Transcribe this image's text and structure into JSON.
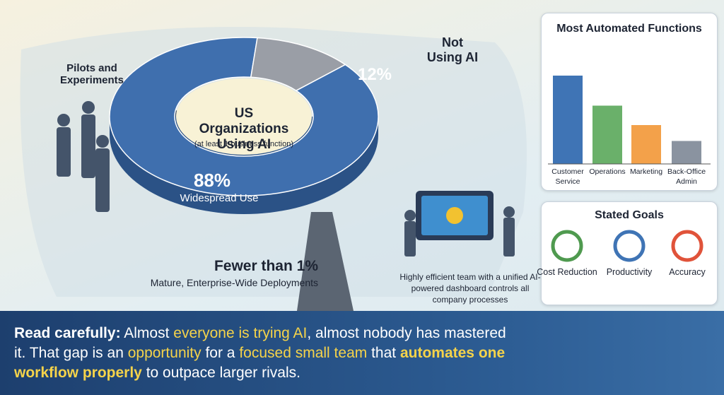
{
  "donut": {
    "title": "US Organizations Using AI",
    "subtitle": "(at least 1 business function)",
    "values": [
      88,
      12
    ],
    "value_labels": [
      "88%",
      "12%"
    ],
    "labels": [
      "Widespread Use",
      "Not Using AI"
    ],
    "colors": [
      "#3f6fae",
      "#9a9ea6"
    ]
  },
  "pilots": "Pilots and Experiments",
  "fewer": {
    "title": "Fewer than 1%",
    "subtitle": "Mature, Enterprise-Wide Deployments"
  },
  "team_caption": "Highly efficient team with a unified AI-powered dashboard controls all company processes",
  "functions": {
    "title": "Most Automated Functions",
    "categories": [
      "Customer Service",
      "Operations",
      "Marketing",
      "Back-Office Admin"
    ],
    "values": [
      100,
      66,
      44,
      26
    ],
    "colors": [
      "#3f74b5",
      "#6ab06a",
      "#f3a14a",
      "#8a93a0"
    ]
  },
  "goals": {
    "title": "Stated Goals",
    "items": [
      "Cost Reduction",
      "Productivity",
      "Accuracy"
    ]
  },
  "banner": [
    {
      "text": "Read carefully:",
      "highlight": false,
      "bold": true
    },
    {
      "text": " Almost ",
      "highlight": false,
      "bold": false
    },
    {
      "text": "everyone is trying AI",
      "highlight": true,
      "bold": false
    },
    {
      "text": ", almost nobody has mastered it. That gap is an ",
      "highlight": false,
      "bold": false
    },
    {
      "text": "opportunity",
      "highlight": true,
      "bold": false
    },
    {
      "text": " for a ",
      "highlight": false,
      "bold": false
    },
    {
      "text": "focused small team",
      "highlight": true,
      "bold": false
    },
    {
      "text": " that ",
      "highlight": false,
      "bold": false
    },
    {
      "text": "automates one workflow properly",
      "highlight": true,
      "bold": true
    },
    {
      "text": " to outpace larger rivals.",
      "highlight": false,
      "bold": false
    }
  ]
}
